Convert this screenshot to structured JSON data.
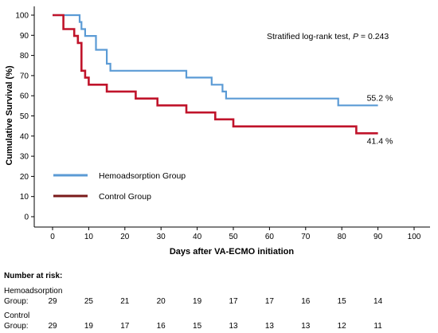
{
  "chart_data": {
    "type": "line",
    "step": true,
    "xlabel": "Days after VA-ECMO initiation",
    "ylabel": "Cumulative Survival (%)",
    "xlim": [
      0,
      100
    ],
    "ylim": [
      0,
      100
    ],
    "xticks": [
      "0",
      "10",
      "20",
      "30",
      "40",
      "50",
      "60",
      "70",
      "80",
      "90",
      "100"
    ],
    "yticks": [
      "0",
      "10",
      "20",
      "30",
      "40",
      "50",
      "60",
      "70",
      "80",
      "90",
      "100"
    ],
    "grid": false,
    "legend_position": "lower-left",
    "annotation": {
      "prefix": "Stratified log-rank test, ",
      "p_label": "P",
      "p_value": " = 0.243"
    },
    "series": [
      {
        "name": "Hemoadsorption Group",
        "color": "#5b9bd5",
        "end_label": "55.2 %",
        "x": [
          0,
          7.5,
          8,
          9,
          12,
          15,
          16,
          37,
          44,
          47,
          48,
          49,
          79,
          90
        ],
        "y": [
          100,
          96.6,
          93.1,
          89.7,
          82.8,
          75.9,
          72.4,
          69.0,
          65.5,
          62.1,
          58.6,
          58.6,
          55.2,
          55.2
        ]
      },
      {
        "name": "Control Group",
        "color": "#c0142b",
        "end_label": "41.4 %",
        "x": [
          0,
          3,
          6,
          7,
          8,
          9,
          10,
          11,
          15,
          23,
          29,
          37,
          45,
          50,
          84,
          90
        ],
        "y": [
          100,
          93.1,
          89.7,
          86.2,
          72.4,
          69.0,
          65.5,
          65.5,
          62.1,
          58.6,
          55.2,
          51.7,
          48.3,
          44.8,
          41.4,
          41.4
        ]
      }
    ]
  },
  "risk_table": {
    "title": "Number at risk:",
    "rows": [
      {
        "label_line1": "Hemoadsorption",
        "label_line2": "Group:",
        "counts": [
          "29",
          "25",
          "21",
          "20",
          "19",
          "17",
          "17",
          "16",
          "15",
          "14"
        ]
      },
      {
        "label_line1": "Control",
        "label_line2": "Group:",
        "counts": [
          "29",
          "19",
          "17",
          "16",
          "15",
          "13",
          "13",
          "13",
          "12",
          "11"
        ]
      }
    ]
  }
}
